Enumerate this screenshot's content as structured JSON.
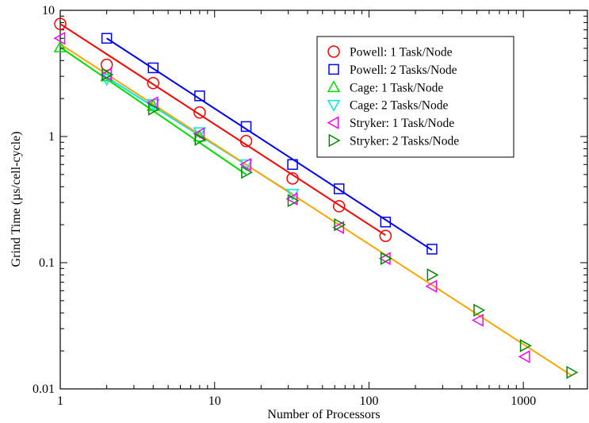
{
  "chart_data": {
    "type": "scatter",
    "xlabel": "Number of Processors",
    "ylabel": "Grind Time (µs/cell-cycle)",
    "xscale": "log",
    "yscale": "log",
    "xlim": [
      1,
      2600
    ],
    "ylim": [
      0.01,
      10
    ],
    "xticks": [
      1,
      10,
      100,
      1000
    ],
    "xtick_labels": [
      "1",
      "10",
      "100",
      "1000"
    ],
    "yticks": [
      0.01,
      0.1,
      1,
      10
    ],
    "ytick_labels": [
      "0.01",
      "0.1",
      "1",
      "10"
    ],
    "grid": false,
    "legend_position": "top-right",
    "series": [
      {
        "name": "Powell: 1 Task/Node",
        "marker": "circle",
        "color": "#ff0000",
        "x": [
          1,
          2,
          4,
          8,
          16,
          32,
          64,
          128
        ],
        "y": [
          7.8,
          3.7,
          2.65,
          1.55,
          0.92,
          0.465,
          0.28,
          0.163
        ]
      },
      {
        "name": "Powell: 2 Tasks/Node",
        "marker": "square",
        "color": "#0000ff",
        "x": [
          2,
          4,
          8,
          16,
          32,
          64,
          128,
          256
        ],
        "y": [
          6.0,
          3.5,
          2.1,
          1.2,
          0.6,
          0.385,
          0.21,
          0.128
        ]
      },
      {
        "name": "Cage: 1 Task/Node",
        "marker": "triangle-up",
        "color": "#00e000",
        "x": [
          1,
          2,
          4,
          8
        ],
        "y": [
          5.1,
          3.0,
          1.75,
          1.0
        ]
      },
      {
        "name": "Cage: 2 Tasks/Node",
        "marker": "triangle-down",
        "color": "#00e8e8",
        "x": [
          2,
          4,
          8,
          16,
          32
        ],
        "y": [
          2.85,
          1.8,
          1.08,
          0.6,
          0.35
        ]
      },
      {
        "name": "Stryker: 1 Task/Node",
        "marker": "triangle-left",
        "color": "#ff00ff",
        "x": [
          1,
          2,
          4,
          8,
          16,
          32,
          64,
          128,
          256,
          512,
          1024
        ],
        "y": [
          6.0,
          3.1,
          1.85,
          1.05,
          0.6,
          0.32,
          0.19,
          0.108,
          0.065,
          0.035,
          0.018
        ]
      },
      {
        "name": "Stryker: 2 Tasks/Node",
        "marker": "triangle-right",
        "color": "#008800",
        "x": [
          2,
          4,
          8,
          16,
          32,
          64,
          128,
          256,
          512,
          1024,
          2048
        ],
        "y": [
          3.1,
          1.65,
          0.95,
          0.52,
          0.31,
          0.2,
          0.108,
          0.08,
          0.042,
          0.022,
          0.0135
        ]
      }
    ],
    "fit_lines": [
      {
        "color": "#ff0000",
        "x": [
          1,
          128
        ],
        "y": [
          7.8,
          0.165
        ]
      },
      {
        "color": "#0000ff",
        "x": [
          2,
          256
        ],
        "y": [
          6.0,
          0.126
        ]
      },
      {
        "color": "#00e000",
        "x": [
          1,
          16
        ],
        "y": [
          5.1,
          0.5
        ]
      },
      {
        "color": "#00e8e8",
        "x": [
          2,
          32
        ],
        "y": [
          2.95,
          0.35
        ]
      },
      {
        "color": "#ffa500",
        "x": [
          1,
          2048
        ],
        "y": [
          5.4,
          0.0128
        ]
      }
    ]
  }
}
